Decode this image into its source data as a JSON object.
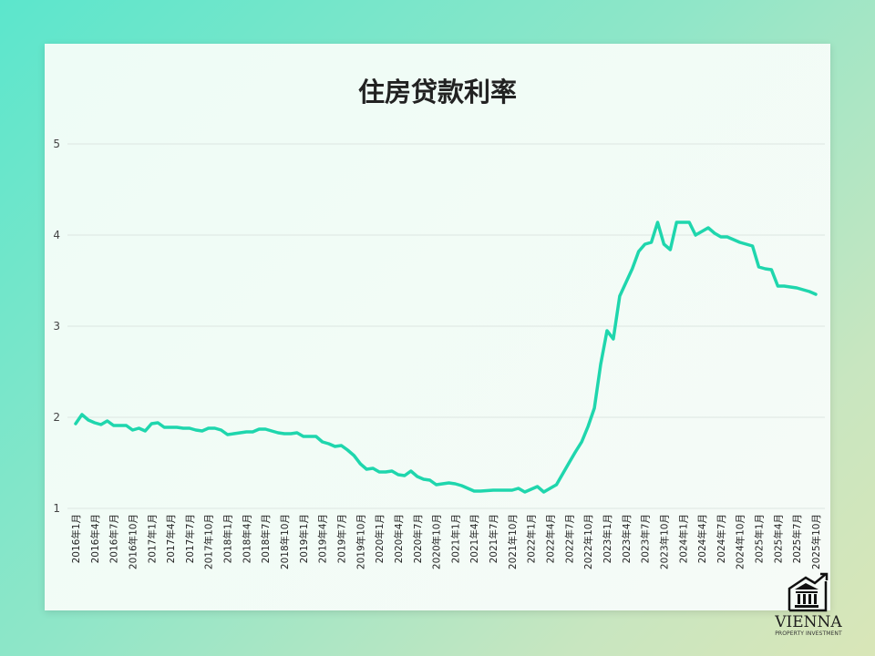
{
  "chart_data": {
    "type": "line",
    "title": "住房贷款利率",
    "xlabel": "",
    "ylabel": "",
    "ylim": [
      1,
      5
    ],
    "yticks": [
      "1",
      "2",
      "3",
      "4",
      "5"
    ],
    "grid": true,
    "color": "#1fd6ad",
    "x_start": "2016年1月",
    "x_end": "2025年10月",
    "tick_labels": [
      "2016年1月",
      "2016年4月",
      "2016年7月",
      "2016年10月",
      "2017年1月",
      "2017年4月",
      "2017年7月",
      "2017年10月",
      "2018年1月",
      "2018年4月",
      "2018年7月",
      "2018年10月",
      "2019年1月",
      "2019年4月",
      "2019年7月",
      "2019年10月",
      "2020年1月",
      "2020年4月",
      "2020年7月",
      "2020年10月",
      "2021年1月",
      "2021年4月",
      "2021年7月",
      "2021年10月",
      "2022年1月",
      "2022年4月",
      "2022年7月",
      "2022年10月",
      "2023年1月",
      "2023年4月",
      "2023年7月",
      "2023年10月",
      "2024年1月",
      "2024年4月",
      "2024年7月",
      "2024年10月",
      "2025年1月",
      "2025年4月",
      "2025年7月",
      "2025年10月"
    ],
    "values": [
      1.93,
      2.03,
      1.97,
      1.94,
      1.92,
      1.96,
      1.91,
      1.91,
      1.91,
      1.86,
      1.88,
      1.85,
      1.93,
      1.94,
      1.89,
      1.89,
      1.89,
      1.88,
      1.88,
      1.86,
      1.85,
      1.88,
      1.88,
      1.86,
      1.81,
      1.82,
      1.83,
      1.84,
      1.84,
      1.87,
      1.87,
      1.85,
      1.83,
      1.82,
      1.82,
      1.83,
      1.79,
      1.79,
      1.79,
      1.73,
      1.71,
      1.68,
      1.69,
      1.64,
      1.58,
      1.49,
      1.43,
      1.44,
      1.4,
      1.4,
      1.41,
      1.37,
      1.36,
      1.41,
      1.35,
      1.32,
      1.31,
      1.26,
      1.27,
      1.28,
      1.27,
      1.25,
      1.22,
      1.19,
      1.19,
      1.195,
      1.2,
      1.2,
      1.2,
      1.2,
      1.22,
      1.18,
      1.21,
      1.24,
      1.18,
      1.22,
      1.26,
      1.38,
      1.5,
      1.62,
      1.73,
      1.9,
      2.1,
      2.58,
      2.95,
      2.86,
      3.33,
      3.48,
      3.63,
      3.82,
      3.9,
      3.92,
      4.14,
      3.9,
      3.84,
      4.14,
      4.14,
      4.14,
      4.0,
      4.04,
      4.08,
      4.02,
      3.98,
      3.98,
      3.95,
      3.92,
      3.9,
      3.88,
      3.65,
      3.63,
      3.62,
      3.44,
      3.44,
      3.43,
      3.42,
      3.4,
      3.38,
      3.35
    ]
  },
  "logo": {
    "name": "VIENNA",
    "tagline": "PROPERTY INVESTMENT"
  }
}
